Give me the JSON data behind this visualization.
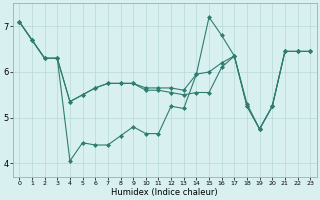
{
  "xlabel": "Humidex (Indice chaleur)",
  "background_color": "#d8f0f0",
  "grid_color": "#b8d8d8",
  "line_color": "#2e7d6e",
  "xlim": [
    -0.5,
    23.5
  ],
  "ylim": [
    3.7,
    7.5
  ],
  "xticks": [
    0,
    1,
    2,
    3,
    4,
    5,
    6,
    7,
    8,
    9,
    10,
    11,
    12,
    13,
    14,
    15,
    16,
    17,
    18,
    19,
    20,
    21,
    22,
    23
  ],
  "yticks": [
    4,
    5,
    6,
    7
  ],
  "series": [
    [
      7.1,
      6.7,
      6.3,
      6.3,
      4.05,
      4.45,
      4.4,
      4.4,
      4.6,
      4.8,
      4.65,
      4.65,
      5.25,
      5.2,
      5.95,
      7.2,
      6.8,
      6.35,
      5.3,
      4.75,
      5.25,
      6.45,
      6.45,
      6.45
    ],
    [
      7.1,
      6.7,
      6.3,
      6.3,
      5.35,
      5.5,
      5.65,
      5.75,
      5.75,
      5.75,
      5.6,
      5.6,
      5.55,
      5.5,
      5.55,
      5.55,
      6.1,
      6.35,
      5.25,
      4.75,
      5.25,
      6.45,
      6.45,
      6.45
    ],
    [
      7.1,
      6.7,
      6.3,
      6.3,
      5.35,
      5.5,
      5.65,
      5.75,
      5.75,
      5.75,
      5.65,
      5.65,
      5.65,
      5.6,
      5.95,
      6.0,
      6.2,
      6.35,
      5.25,
      4.75,
      5.25,
      6.45,
      6.45,
      6.45
    ]
  ]
}
